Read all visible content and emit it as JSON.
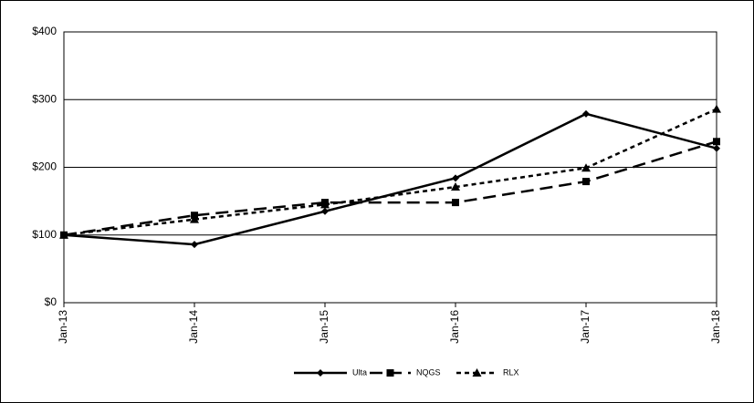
{
  "chart_data": {
    "type": "line",
    "categories": [
      "Jan-13",
      "Jan-14",
      "Jan-15",
      "Jan-16",
      "Jan-17",
      "Jan-18"
    ],
    "series": [
      {
        "name": "Ulta",
        "color": "#000000",
        "dash": "none",
        "marker": "diamond",
        "values": [
          100,
          86,
          135,
          184,
          279,
          228
        ]
      },
      {
        "name": "NQGS",
        "color": "#000000",
        "dash": "14,7",
        "marker": "square",
        "values": [
          100,
          129,
          148,
          148,
          179,
          238
        ]
      },
      {
        "name": "RLX",
        "color": "#000000",
        "dash": "5,4",
        "marker": "triangle",
        "values": [
          100,
          123,
          145,
          171,
          199,
          286
        ]
      }
    ],
    "ylim": [
      0,
      400
    ],
    "yticks": [
      {
        "value": 0,
        "label": "$0"
      },
      {
        "value": 100,
        "label": "$100"
      },
      {
        "value": 200,
        "label": "$200"
      },
      {
        "value": 300,
        "label": "$300"
      },
      {
        "value": 400,
        "label": "$400"
      }
    ],
    "grid": true,
    "legend": "bottom"
  }
}
